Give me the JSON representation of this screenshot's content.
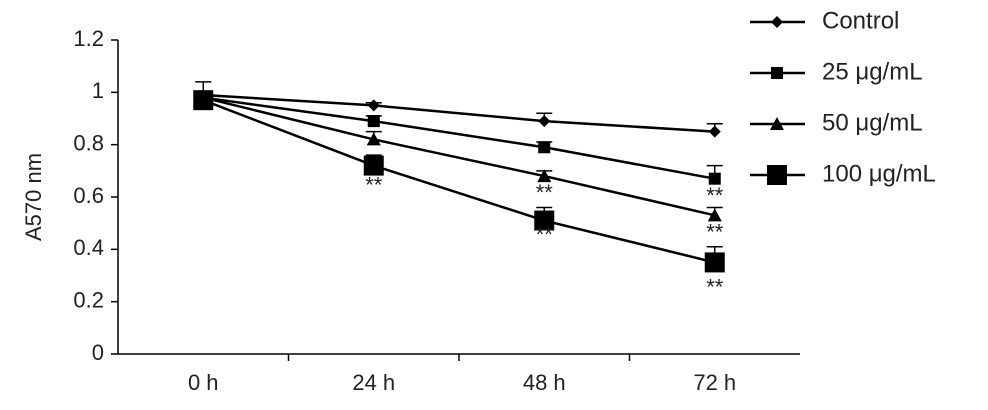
{
  "chart_data": {
    "type": "line",
    "y_label": "A570 nm",
    "categories": [
      "0 h",
      "24 h",
      "48 h",
      "72 h"
    ],
    "series": [
      {
        "name": "Control",
        "color": "#000000",
        "marker": "diamond",
        "values": [
          0.99,
          0.95,
          0.89,
          0.85
        ],
        "errors": [
          0.05,
          0.01,
          0.03,
          0.03
        ]
      },
      {
        "name": "25 μg/mL",
        "color": "#000000",
        "marker": "square",
        "values": [
          0.98,
          0.89,
          0.79,
          0.67
        ],
        "errors": [
          0.02,
          0.02,
          0.02,
          0.05
        ]
      },
      {
        "name": "50 μg/mL",
        "color": "#000000",
        "marker": "triangle",
        "values": [
          0.98,
          0.82,
          0.68,
          0.53
        ],
        "errors": [
          0.02,
          0.03,
          0.02,
          0.03
        ]
      },
      {
        "name": "100 μg/mL",
        "color": "#000000",
        "marker": "big-square",
        "values": [
          0.97,
          0.72,
          0.51,
          0.35
        ],
        "errors": [
          0.03,
          0.04,
          0.05,
          0.06
        ]
      }
    ],
    "annotations": [
      {
        "text": "**",
        "category": "24 h",
        "y": 0.64
      },
      {
        "text": "**",
        "category": "48 h",
        "y": 0.61
      },
      {
        "text": "**",
        "category": "48 h",
        "y": 0.45
      },
      {
        "text": "**",
        "category": "72 h",
        "y": 0.6
      },
      {
        "text": "**",
        "category": "72 h",
        "y": 0.46
      },
      {
        "text": "**",
        "category": "72 h",
        "y": 0.25
      }
    ],
    "ylim": [
      0,
      1.2
    ],
    "yticks": [
      0,
      0.2,
      0.4,
      0.6,
      0.8,
      1,
      1.2
    ],
    "grid": false,
    "legend": "right"
  }
}
